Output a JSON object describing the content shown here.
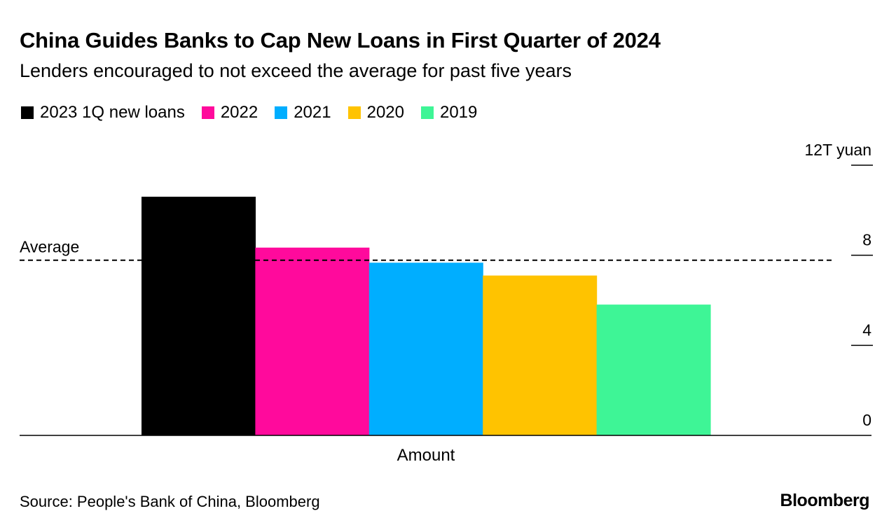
{
  "header": {
    "title": "China Guides Banks to Cap New Loans in First Quarter of 2024",
    "subtitle": "Lenders encouraged to not exceed the average for past five years"
  },
  "footer": {
    "source": "Source: People's Bank of China, Bloomberg",
    "brand": "Bloomberg"
  },
  "chart_data": {
    "type": "bar",
    "categories": [
      "Amount"
    ],
    "xlabel": "Amount",
    "ylabel": "",
    "unit_label": "12T yuan",
    "ylim": [
      0,
      12
    ],
    "yticks": [
      0,
      4,
      8,
      12
    ],
    "ytick_labels": [
      "0",
      "4",
      "8",
      "12T yuan"
    ],
    "series": [
      {
        "name": "2023 1Q new loans",
        "color": "#000000",
        "values": [
          10.6
        ]
      },
      {
        "name": "2022",
        "color": "#ff0a9c",
        "values": [
          8.34
        ]
      },
      {
        "name": "2021",
        "color": "#00aeff",
        "values": [
          7.67
        ]
      },
      {
        "name": "2020",
        "color": "#ffc300",
        "values": [
          7.1
        ]
      },
      {
        "name": "2019",
        "color": "#3ef596",
        "values": [
          5.81
        ]
      }
    ],
    "reference_line": {
      "label": "Average",
      "value": 7.78,
      "style": "dashed"
    },
    "legend_position": "top-left",
    "grid": false
  }
}
